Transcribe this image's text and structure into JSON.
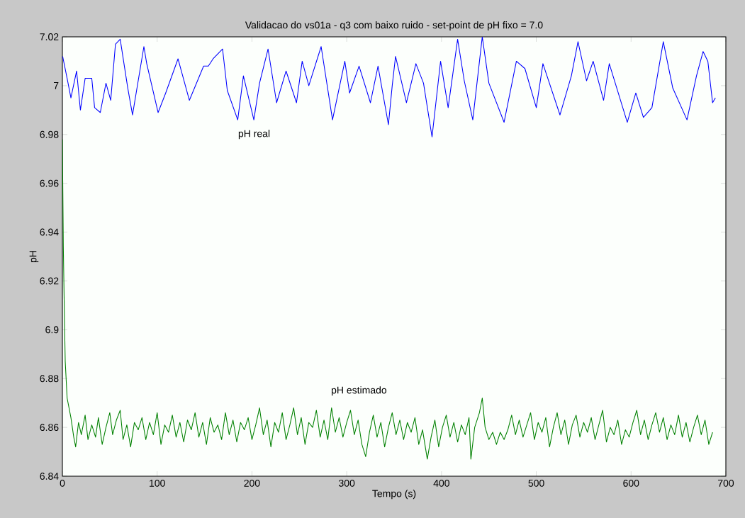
{
  "chart_data": {
    "type": "line",
    "title": "Validacao do vs01a - q3 com baixo ruido - set-point de pH fixo = 7.0",
    "xlabel": "Tempo (s)",
    "ylabel": "pH",
    "xlim": [
      0,
      700
    ],
    "ylim": [
      6.84,
      7.02
    ],
    "xticks": [
      0,
      100,
      200,
      300,
      400,
      500,
      600,
      700
    ],
    "yticks": [
      6.84,
      6.86,
      6.88,
      6.9,
      6.92,
      6.94,
      6.96,
      6.98,
      7,
      7.02
    ],
    "line_style": "solid",
    "marker": "none",
    "series": [
      {
        "name": "pH real",
        "color": "#0000ff",
        "x": [
          0.3,
          5,
          9,
          15,
          19,
          24,
          31,
          34,
          40,
          46,
          51,
          56,
          61,
          69,
          74,
          86,
          89,
          101,
          109,
          122,
          134,
          149,
          154,
          159,
          169,
          174,
          185,
          191,
          202,
          208,
          217,
          226,
          236,
          247,
          253,
          260,
          273,
          285,
          298,
          303,
          313,
          325,
          333,
          344,
          348,
          351.5,
          363,
          373,
          381,
          390,
          399,
          407,
          417,
          424,
          433,
          443,
          450,
          466,
          479,
          488,
          500,
          507,
          525,
          537,
          544,
          553,
          560,
          571,
          577,
          596,
          605,
          613,
          622,
          634,
          644,
          659,
          669,
          676,
          681,
          686,
          689
        ],
        "values": [
          7.012,
          7.003,
          6.995,
          7.006,
          6.99,
          7.003,
          7.003,
          6.991,
          6.989,
          7.001,
          6.994,
          7.017,
          7.019,
          6.999,
          6.988,
          7.016,
          7.009,
          6.989,
          6.997,
          7.011,
          6.994,
          7.008,
          7.008,
          7.011,
          7.015,
          6.998,
          6.986,
          7.004,
          6.986,
          7.001,
          7.015,
          6.993,
          7.006,
          6.993,
          7.01,
          7.0,
          7.016,
          6.986,
          7.01,
          6.997,
          7.008,
          6.993,
          7.008,
          6.984,
          7.0,
          7.012,
          6.993,
          7.009,
          7.001,
          6.979,
          7.01,
          6.991,
          7.019,
          7.002,
          6.986,
          7.02,
          7.001,
          6.985,
          7.01,
          7.007,
          6.991,
          7.009,
          6.988,
          7.004,
          7.018,
          7.002,
          7.01,
          6.994,
          7.009,
          6.985,
          6.997,
          6.987,
          6.991,
          7.018,
          6.999,
          6.986,
          7.004,
          7.014,
          7.01,
          6.993,
          6.995
        ]
      },
      {
        "name": "pH estimado",
        "color": "#008000",
        "x": [
          0,
          1,
          2,
          3,
          5,
          9,
          12,
          14,
          17,
          20,
          24,
          27,
          31,
          35,
          38,
          42,
          46,
          50,
          53,
          57,
          61,
          64,
          68,
          72,
          76,
          80,
          84,
          88,
          92,
          96,
          100,
          104,
          108,
          112,
          116,
          120,
          124,
          128,
          132,
          136,
          140,
          144,
          148,
          152,
          156,
          160,
          164,
          168,
          172,
          176,
          180,
          184,
          188,
          192,
          196,
          200,
          204,
          208,
          212,
          216,
          220,
          224,
          228,
          232,
          236,
          240,
          244,
          248,
          252,
          256,
          260,
          264,
          268,
          272,
          276,
          280,
          284,
          288,
          292,
          296,
          300,
          304,
          308,
          312,
          316,
          320,
          324,
          328,
          332,
          336,
          340,
          344,
          348,
          352,
          356,
          360,
          364,
          368,
          372,
          376,
          380,
          385,
          389,
          393,
          397,
          401,
          405,
          409,
          413,
          417,
          421,
          425,
          429,
          431,
          435,
          440,
          443,
          446,
          450,
          454,
          458,
          462,
          466,
          470,
          474,
          478,
          482,
          486,
          490,
          494,
          498,
          502,
          506,
          510,
          514,
          518,
          522,
          526,
          530,
          534,
          538,
          542,
          546,
          550,
          554,
          558,
          562,
          566,
          570,
          574,
          578,
          582,
          586,
          590,
          594,
          598,
          602,
          606,
          610,
          614,
          618,
          622,
          626,
          630,
          634,
          638,
          642,
          646,
          650,
          654,
          658,
          662,
          666,
          670,
          674,
          678,
          682,
          686
        ],
        "values": [
          6.978,
          6.934,
          6.909,
          6.887,
          6.872,
          6.864,
          6.856,
          6.852,
          6.862,
          6.857,
          6.865,
          6.855,
          6.861,
          6.856,
          6.864,
          6.853,
          6.86,
          6.866,
          6.857,
          6.863,
          6.867,
          6.855,
          6.861,
          6.852,
          6.862,
          6.859,
          6.864,
          6.855,
          6.862,
          6.857,
          6.866,
          6.853,
          6.861,
          6.858,
          6.865,
          6.856,
          6.862,
          6.854,
          6.863,
          6.859,
          6.866,
          6.856,
          6.862,
          6.853,
          6.864,
          6.858,
          6.861,
          6.855,
          6.866,
          6.857,
          6.863,
          6.854,
          6.862,
          6.859,
          6.864,
          6.855,
          6.861,
          6.868,
          6.857,
          6.863,
          6.852,
          6.862,
          6.858,
          6.866,
          6.855,
          6.861,
          6.868,
          6.857,
          6.864,
          6.853,
          6.862,
          6.86,
          6.867,
          6.856,
          6.863,
          6.855,
          6.868,
          6.858,
          6.864,
          6.856,
          6.862,
          6.867,
          6.857,
          6.863,
          6.853,
          6.848,
          6.858,
          6.865,
          6.856,
          6.862,
          6.852,
          6.86,
          6.866,
          6.857,
          6.863,
          6.855,
          6.862,
          6.858,
          6.864,
          6.853,
          6.859,
          6.847,
          6.856,
          6.863,
          6.852,
          6.86,
          6.865,
          6.856,
          6.862,
          6.854,
          6.861,
          6.857,
          6.864,
          6.847,
          6.86,
          6.866,
          6.872,
          6.86,
          6.855,
          6.858,
          6.853,
          6.858,
          6.855,
          6.859,
          6.865,
          6.857,
          6.863,
          6.856,
          6.861,
          6.866,
          6.855,
          6.862,
          6.858,
          6.864,
          6.852,
          6.86,
          6.866,
          6.857,
          6.863,
          6.853,
          6.861,
          6.865,
          6.856,
          6.862,
          6.858,
          6.864,
          6.855,
          6.861,
          6.867,
          6.854,
          6.86,
          6.857,
          6.863,
          6.853,
          6.859,
          6.856,
          6.862,
          6.867,
          6.857,
          6.863,
          6.855,
          6.861,
          6.866,
          6.858,
          6.864,
          6.855,
          6.861,
          6.857,
          6.865,
          6.856,
          6.862,
          6.854,
          6.86,
          6.865,
          6.857,
          6.863,
          6.853,
          6.858
        ]
      }
    ]
  }
}
